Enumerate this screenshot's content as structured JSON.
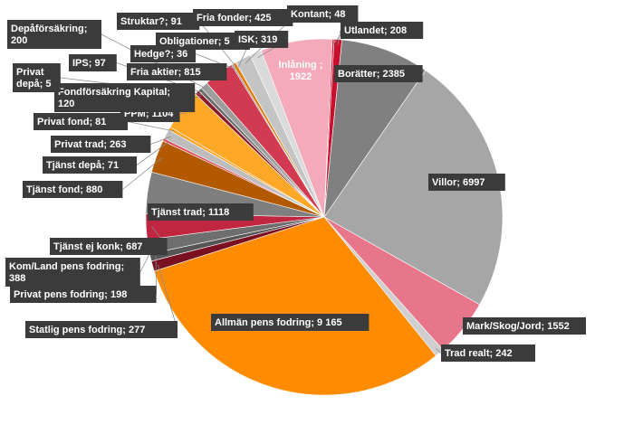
{
  "chart_data": {
    "type": "pie",
    "title": "",
    "legend": "none",
    "slices": [
      {
        "label": "Utlandet",
        "value": 208,
        "display": "Utlandet; 208",
        "color": "#c8102e"
      },
      {
        "label": "Borätter",
        "value": 2385,
        "display": "Borätter; 2385",
        "color": "#808080"
      },
      {
        "label": "Villor",
        "value": 6997,
        "display": "Villor; 6997",
        "color": "#a6a6a6"
      },
      {
        "label": "Mark/Skog/Jord",
        "value": 1552,
        "display": "Mark/Skog/Jord; 1552",
        "color": "#e8768a"
      },
      {
        "label": "Trad realt",
        "value": 242,
        "display": "Trad realt; 242",
        "color": "#cfcfcf"
      },
      {
        "label": "Allmän pens fodring",
        "value": 9165,
        "display": "Allmän pens fodring; 9 165",
        "color": "#ff8c00"
      },
      {
        "label": "Statlig pens fodring",
        "value": 277,
        "display": "Statlig pens fodring; 277",
        "color": "#7a1020"
      },
      {
        "label": "Privat pens fodring",
        "value": 198,
        "display": "Privat pens fodring; 198",
        "color": "#555555"
      },
      {
        "label": "Kom/Land pens fodring",
        "value": 388,
        "display": "Kom/Land pens fodring; 388",
        "color": "#6e6e6e"
      },
      {
        "label": "Tjänst ej konk",
        "value": 687,
        "display": "Tjänst ej konk; 687",
        "color": "#c0263f"
      },
      {
        "label": "Tjänst trad",
        "value": 1118,
        "display": "Tjänst trad; 1118",
        "color": "#7f7f7f"
      },
      {
        "label": "Tjänst fond",
        "value": 880,
        "display": "Tjänst fond; 880",
        "color": "#b35a00"
      },
      {
        "label": "Tjänst depå",
        "value": 71,
        "display": "Tjänst depå; 71",
        "color": "#e0455c"
      },
      {
        "label": "Privat trad",
        "value": 263,
        "display": "Privat trad; 263",
        "color": "#bdbdbd"
      },
      {
        "label": "Privat fond",
        "value": 81,
        "display": "Privat fond; 81",
        "color": "#ff9f1c"
      },
      {
        "label": "PPM",
        "value": 1104,
        "display": "PPM; 1104",
        "color": "#ffa726"
      },
      {
        "label": "Fondförsäkring Kapital",
        "value": 120,
        "display": "Fondförsäkring Kapital; 120",
        "color": "#8a1a2a"
      },
      {
        "label": "Privat depå",
        "value": 5,
        "display": "Privat depå; 5",
        "color": "#444444"
      },
      {
        "label": "IPS",
        "value": 97,
        "display": "IPS; 97",
        "color": "#6a6a6a"
      },
      {
        "label": "Depåförsäkring",
        "value": 200,
        "display": "Depåförsäkring; 200",
        "color": "#9e9e9e"
      },
      {
        "label": "Fria aktier",
        "value": 815,
        "display": "Fria aktier; 815",
        "color": "#d23a52"
      },
      {
        "label": "Hedge?",
        "value": 36,
        "display": "Hedge?; 36",
        "color": "#707070"
      },
      {
        "label": "Strukta?",
        "value": 91,
        "display": "Struktar?; 91",
        "color": "#e07b00"
      },
      {
        "label": "Obligationer",
        "value": 5,
        "display": "Obligationer; 5",
        "color": "#333333"
      },
      {
        "label": "Fria fonder",
        "value": 425,
        "display": "Fria fonder; 425",
        "color": "#c4c4c4"
      },
      {
        "label": "ISK",
        "value": 319,
        "display": "ISK; 319",
        "color": "#dadada"
      },
      {
        "label": "Inlåning",
        "value": 1922,
        "display": "Inlåning ; 1922",
        "color": "#f4aabb"
      },
      {
        "label": "Kontant",
        "value": 48,
        "display": "Kontant; 48",
        "color": "#e2122f"
      }
    ]
  }
}
